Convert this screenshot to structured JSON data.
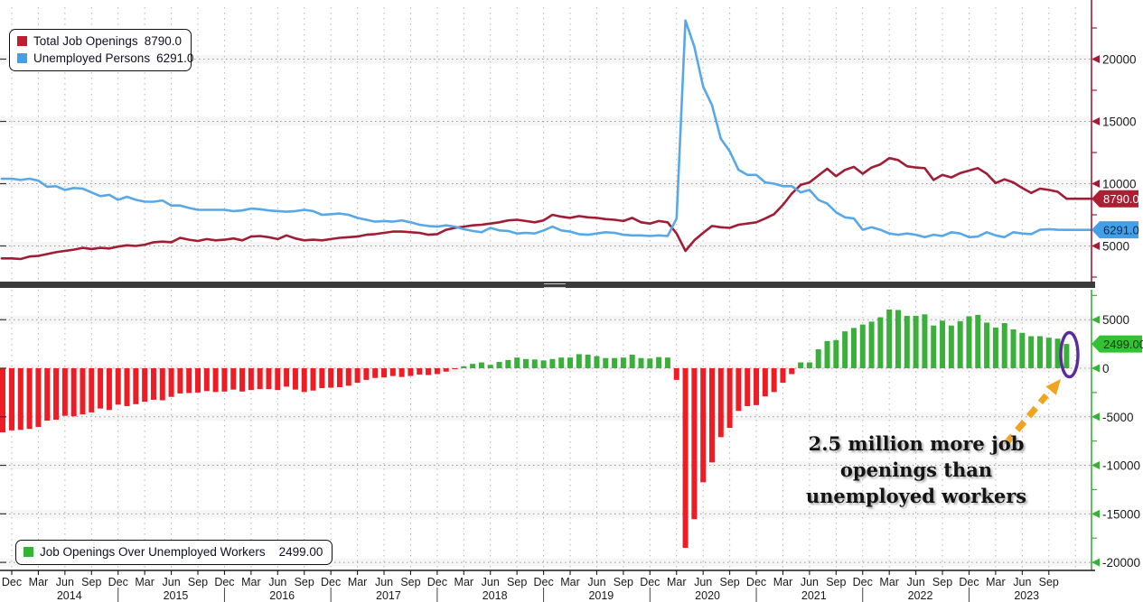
{
  "colors": {
    "openings_line": "#a01d35",
    "unemployed_line": "#58a8e8",
    "bar_positive": "#3ab03a",
    "bar_negative": "#ee1c25",
    "badge_openings": "#ad1e33",
    "badge_unemployed": "#42a0e8",
    "badge_diff": "#33c233",
    "axis_top": "#a01d35",
    "axis_bottom": "#3ab03a",
    "axis_x": "#1a1a1a",
    "grid_dots": "#9a9a9a",
    "grid_band": "#f6f6f6",
    "divider": "#3b3b3b",
    "tick_label": "#1a1a1a",
    "highlight_ellipse": "#5b2a9b",
    "annotation_arrow": "#f0a51e"
  },
  "legend_top": {
    "items": [
      {
        "label": "Total Job Openings",
        "value": "8790.0",
        "color": "#bf1e2e"
      },
      {
        "label": "Unemployed Persons",
        "value": "6291.0",
        "color": "#42a0e8"
      }
    ]
  },
  "legend_bottom": {
    "label": "Job Openings Over Unemployed Workers",
    "value": "2499.00",
    "color": "#33b433"
  },
  "annotation": {
    "line1": "2.5 million more job",
    "line2": "openings than",
    "line3": "unemployed workers"
  },
  "badges": {
    "openings": "8790.0",
    "unemployed": "6291.0",
    "diff": "2499.00"
  },
  "x_axis": {
    "quarter_labels": [
      "Dec",
      "Mar",
      "Jun",
      "Sep"
    ],
    "years": [
      "2014",
      "2015",
      "2016",
      "2017",
      "2018",
      "2019",
      "2020",
      "2021",
      "2022",
      "2023"
    ],
    "start": "Dec 2013",
    "end": "Nov 2023",
    "frequency": "monthly"
  },
  "chart_data": [
    {
      "type": "line",
      "panel": "top",
      "ylim": [
        0,
        24200
      ],
      "yticks": [
        5000,
        10000,
        15000,
        20000
      ],
      "minor_tick_step": 2500,
      "grid": true,
      "legend_position": "top-left",
      "series": [
        {
          "name": "Total Job Openings",
          "last_value": 8790.0,
          "color": "#a01d35",
          "values": [
            4000,
            3950,
            4150,
            4200,
            4350,
            4500,
            4600,
            4700,
            4850,
            4750,
            4850,
            4800,
            4950,
            5050,
            5000,
            5100,
            5300,
            5350,
            5300,
            5650,
            5500,
            5400,
            5550,
            5450,
            5500,
            5600,
            5450,
            5750,
            5800,
            5700,
            5550,
            5850,
            5600,
            5450,
            5500,
            5450,
            5550,
            5650,
            5700,
            5750,
            5900,
            5950,
            6050,
            6150,
            6150,
            6100,
            6050,
            5900,
            5950,
            6300,
            6450,
            6550,
            6650,
            6700,
            6800,
            6900,
            7050,
            7100,
            7000,
            6900,
            7050,
            7500,
            7350,
            7250,
            7400,
            7300,
            7250,
            7150,
            7100,
            7000,
            7250,
            6900,
            6800,
            7000,
            6900,
            6000,
            4600,
            5450,
            6050,
            6600,
            6500,
            6450,
            6700,
            6800,
            6900,
            7200,
            7550,
            8300,
            9200,
            9900,
            10100,
            10650,
            11200,
            10600,
            11100,
            11350,
            10800,
            11300,
            11550,
            12050,
            11900,
            11400,
            11300,
            11250,
            10300,
            10700,
            10500,
            10850,
            11050,
            11250,
            10800,
            10050,
            10350,
            10100,
            9650,
            9250,
            9600,
            9500,
            9350,
            8790
          ]
        },
        {
          "name": "Unemployed Persons",
          "last_value": 6291.0,
          "color": "#58a8e8",
          "values": [
            10400,
            10300,
            10400,
            10250,
            9750,
            9800,
            9500,
            9650,
            9600,
            9300,
            9000,
            9100,
            8700,
            8950,
            8700,
            8550,
            8550,
            8650,
            8250,
            8250,
            8050,
            7900,
            7900,
            7900,
            7900,
            7800,
            7850,
            8000,
            7950,
            7850,
            7800,
            7750,
            7800,
            7900,
            7800,
            7500,
            7550,
            7600,
            7500,
            7250,
            7100,
            6950,
            7000,
            6950,
            7050,
            6900,
            6700,
            6600,
            6550,
            6650,
            6550,
            6350,
            6200,
            6100,
            6450,
            6250,
            6200,
            6000,
            6050,
            6000,
            6250,
            6550,
            6250,
            6150,
            5950,
            5900,
            6000,
            6100,
            6050,
            5900,
            5850,
            5850,
            5800,
            5850,
            5800,
            7200,
            23100,
            21000,
            17800,
            16300,
            13600,
            12600,
            11100,
            10700,
            10700,
            10100,
            10000,
            9800,
            9800,
            9300,
            9500,
            8700,
            8400,
            7700,
            7300,
            7200,
            6300,
            6500,
            6300,
            6000,
            5900,
            6000,
            5900,
            5700,
            5900,
            5800,
            6100,
            6000,
            5700,
            5750,
            6100,
            5850,
            5700,
            6100,
            6000,
            5950,
            6300,
            6350,
            6300,
            6291
          ]
        }
      ]
    },
    {
      "type": "bar",
      "panel": "bottom",
      "name": "Job Openings Over Unemployed Workers",
      "last_value": 2499.0,
      "ylim": [
        -21500,
        8100
      ],
      "yticks": [
        5000,
        0,
        -5000,
        -10000,
        -15000,
        -20000
      ],
      "minor_tick_step": 2500,
      "grid": true,
      "positive_color": "#3ab03a",
      "negative_color": "#ee1c25",
      "values": [
        -6400,
        -6350,
        -6250,
        -6050,
        -5400,
        -5300,
        -4900,
        -4950,
        -4750,
        -4550,
        -4150,
        -4300,
        -3750,
        -3900,
        -3700,
        -3450,
        -3250,
        -3300,
        -2950,
        -2600,
        -2550,
        -2500,
        -2350,
        -2450,
        -2400,
        -2200,
        -2400,
        -2250,
        -2150,
        -2150,
        -2250,
        -1900,
        -2200,
        -2450,
        -2300,
        -2050,
        -2000,
        -1950,
        -1800,
        -1500,
        -1200,
        -1000,
        -950,
        -800,
        -900,
        -800,
        -650,
        -700,
        -600,
        -350,
        -100,
        200,
        450,
        600,
        350,
        650,
        850,
        1100,
        950,
        900,
        800,
        950,
        1100,
        1100,
        1450,
        1400,
        1250,
        1050,
        1050,
        1100,
        1400,
        1050,
        1000,
        1150,
        1100,
        -1200,
        -18500,
        -15550,
        -11750,
        -9700,
        -7100,
        -6150,
        -4400,
        -3900,
        -3800,
        -2900,
        -2450,
        -1500,
        -600,
        600,
        600,
        1950,
        2800,
        2900,
        3800,
        4150,
        4500,
        4800,
        5250,
        6050,
        6000,
        5400,
        5400,
        5550,
        4400,
        4900,
        4400,
        4850,
        5350,
        5500,
        4700,
        4200,
        4650,
        4000,
        3650,
        3300,
        3300,
        3150,
        3050,
        2499
      ]
    }
  ]
}
